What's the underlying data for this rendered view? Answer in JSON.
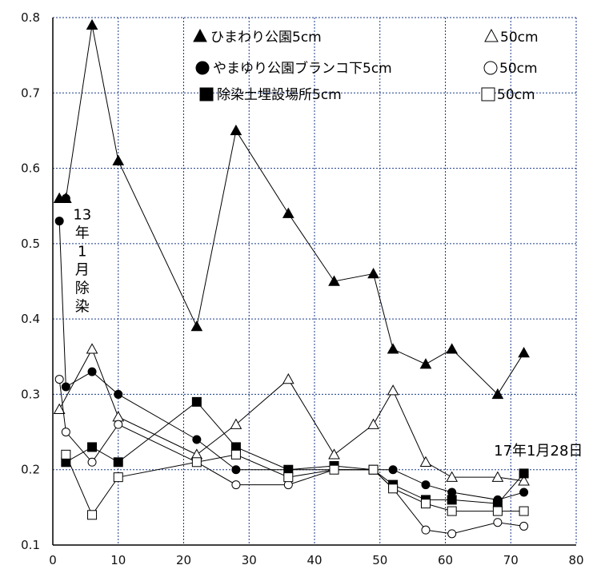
{
  "chart_data": {
    "type": "line",
    "title": "",
    "xlabel": "",
    "ylabel": "",
    "xlim": [
      0,
      80
    ],
    "ylim": [
      0.1,
      0.8
    ],
    "xticks": [
      "0",
      "10",
      "20",
      "30",
      "40",
      "50",
      "60",
      "70",
      "80"
    ],
    "yticks": [
      "0.1",
      "0.2",
      "0.3",
      "0.4",
      "0.5",
      "0.6",
      "0.7",
      "0.8"
    ],
    "grid": true,
    "legend_position": "top-right",
    "series": [
      {
        "name": "ひまわり公園5cm",
        "marker": "triangle",
        "filled": true,
        "x": [
          1,
          2,
          6,
          10,
          22,
          28,
          36,
          43,
          49,
          52,
          57,
          61,
          68,
          72
        ],
        "y": [
          0.56,
          0.56,
          0.79,
          0.61,
          0.39,
          0.65,
          0.54,
          0.45,
          0.46,
          0.36,
          0.34,
          0.36,
          0.3,
          0.355
        ]
      },
      {
        "name": "50cm",
        "marker": "triangle",
        "filled": false,
        "x": [
          1,
          6,
          10,
          22,
          28,
          36,
          43,
          49,
          52,
          57,
          61,
          68,
          72
        ],
        "y": [
          0.28,
          0.36,
          0.27,
          0.22,
          0.26,
          0.32,
          0.22,
          0.26,
          0.305,
          0.21,
          0.19,
          0.19,
          0.185
        ]
      },
      {
        "name": "やまゆり公園ブランコ下5cm",
        "marker": "circle",
        "filled": true,
        "x": [
          1,
          2,
          6,
          10,
          22,
          28,
          36,
          43,
          49,
          52,
          57,
          61,
          68,
          72
        ],
        "y": [
          0.53,
          0.31,
          0.33,
          0.3,
          0.24,
          0.2,
          0.2,
          0.2,
          0.2,
          0.2,
          0.18,
          0.17,
          0.16,
          0.17
        ]
      },
      {
        "name": "50cm",
        "marker": "circle",
        "filled": false,
        "x": [
          1,
          2,
          6,
          10,
          22,
          28,
          36,
          43,
          49,
          52,
          57,
          61,
          68,
          72
        ],
        "y": [
          0.32,
          0.25,
          0.21,
          0.26,
          0.21,
          0.18,
          0.18,
          0.2,
          0.2,
          0.175,
          0.12,
          0.115,
          0.13,
          0.125
        ]
      },
      {
        "name": "除染土埋設場所5cm",
        "marker": "square",
        "filled": true,
        "x": [
          2,
          6,
          10,
          22,
          28,
          36,
          43,
          49,
          52,
          57,
          61,
          68,
          72
        ],
        "y": [
          0.21,
          0.23,
          0.21,
          0.29,
          0.23,
          0.2,
          0.205,
          0.2,
          0.18,
          0.16,
          0.16,
          0.155,
          0.195
        ]
      },
      {
        "name": "50cm",
        "marker": "square",
        "filled": false,
        "x": [
          2,
          6,
          10,
          22,
          28,
          36,
          43,
          49,
          52,
          57,
          61,
          68,
          72
        ],
        "y": [
          0.22,
          0.14,
          0.19,
          0.21,
          0.22,
          0.19,
          0.2,
          0.2,
          0.175,
          0.155,
          0.145,
          0.145,
          0.145
        ]
      }
    ],
    "extra_point": {
      "x": 2,
      "y": 0.56
    },
    "annotations": [
      {
        "text": "13年1月除染",
        "x": 4.5,
        "y": 0.53
      },
      {
        "text": "17年1月28日",
        "x": 73,
        "y": 0.225
      }
    ]
  }
}
